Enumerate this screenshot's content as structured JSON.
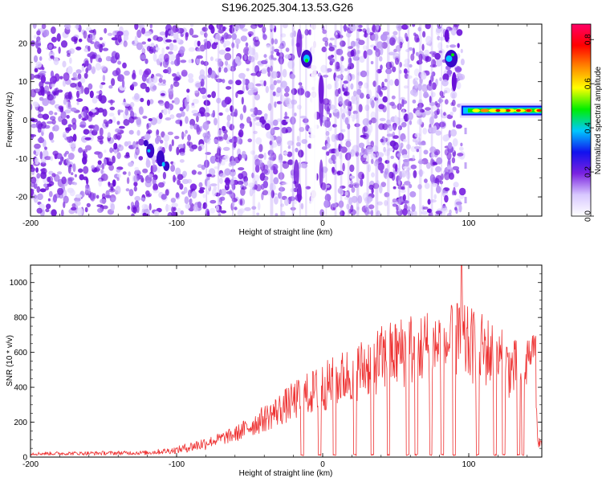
{
  "title": "S196.2025.304.13.53.G26",
  "colors": {
    "snr_line": "#ee3333",
    "spectrogram_base": "#7a22e0",
    "frame": "#000000"
  },
  "chart_data": [
    {
      "type": "heatmap",
      "xlabel": "Height of straight line (km)",
      "ylabel": "Frequency (Hz)",
      "xlim": [
        -200,
        150
      ],
      "ylim": [
        -25,
        25
      ],
      "xticks": [
        -200,
        -100,
        0,
        100
      ],
      "yticks": [
        20,
        10,
        0,
        -10,
        -20
      ],
      "colorbar": {
        "label": "Normalized spectral amplitude",
        "range": [
          0.0,
          0.87
        ],
        "ticks": [
          "0.0",
          "0.2",
          "0.4",
          "0.6",
          "0.8"
        ],
        "tick_values": [
          0.0,
          0.2,
          0.4,
          0.6,
          0.8
        ],
        "colormap": [
          "#ffffff",
          "#d8c8ff",
          "#7a22e0",
          "#1111ee",
          "#00c8ff",
          "#00ee00",
          "#ffff00",
          "#ff8800",
          "#ff0000",
          "#ff0066"
        ]
      },
      "features": [
        {
          "x": -115,
          "y": -10,
          "amplitude": 0.35
        },
        {
          "x": -11,
          "y": 16,
          "amplitude": 0.4
        },
        {
          "x": 88,
          "y": 16,
          "amplitude": 0.35
        },
        {
          "x": [
            95,
            150
          ],
          "y": 2.5,
          "amplitude": 0.85
        }
      ]
    },
    {
      "type": "line",
      "xlabel": "Height of straight line (km)",
      "ylabel": "SNR (10 * v/v)",
      "xlim": [
        -200,
        150
      ],
      "ylim": [
        0,
        1100
      ],
      "xticks": [
        -200,
        -100,
        0,
        100
      ],
      "yticks": [
        0,
        200,
        400,
        600,
        800,
        1000
      ],
      "series": [
        {
          "x": [
            -200,
            -160,
            -120,
            -100,
            -80,
            -60,
            -40,
            -20,
            0,
            20,
            40,
            60,
            80,
            95,
            110,
            130,
            140,
            150
          ],
          "y": [
            20,
            22,
            25,
            40,
            80,
            130,
            220,
            320,
            400,
            480,
            560,
            620,
            640,
            650,
            620,
            500,
            500,
            50
          ]
        }
      ]
    }
  ]
}
